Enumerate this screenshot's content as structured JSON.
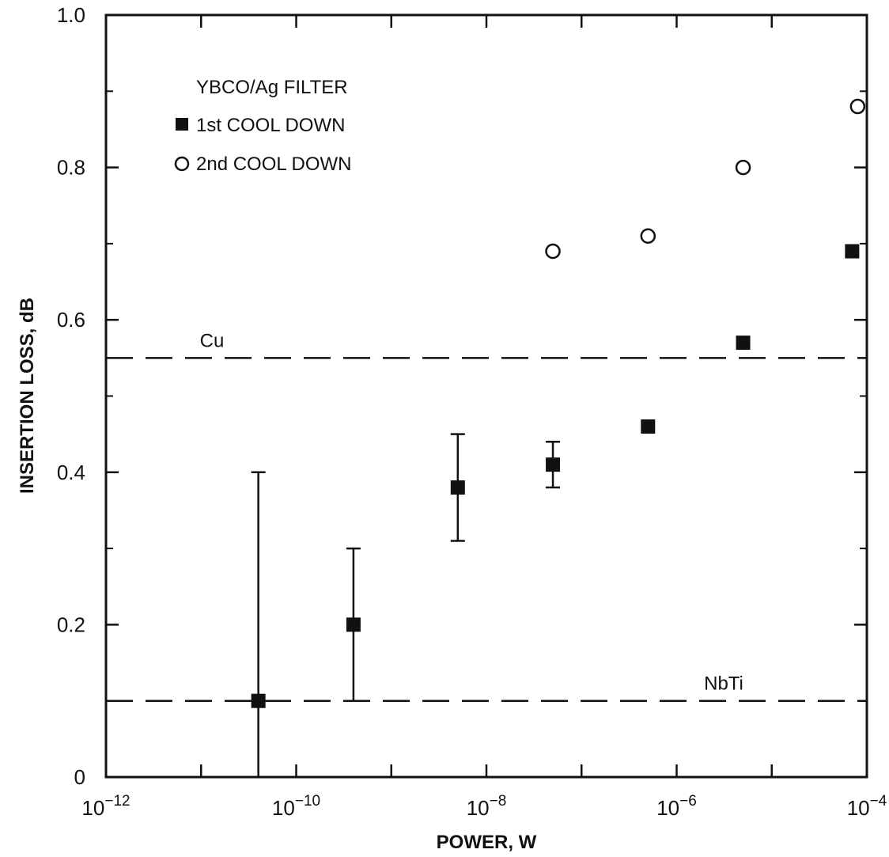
{
  "chart_data": {
    "type": "scatter",
    "xscale": "log",
    "xlim": [
      1e-12,
      0.0001
    ],
    "ylim": [
      0,
      1.0
    ],
    "xlabel": "POWER, W",
    "ylabel": "INSERTION LOSS, dB",
    "x_ticks": [
      {
        "value": 1e-12,
        "base": "10",
        "exp": "−12"
      },
      {
        "value": 1e-10,
        "base": "10",
        "exp": "−10"
      },
      {
        "value": 1e-08,
        "base": "10",
        "exp": "−8"
      },
      {
        "value": 1e-06,
        "base": "10",
        "exp": "−6"
      },
      {
        "value": 0.0001,
        "base": "10",
        "exp": "−4"
      }
    ],
    "y_ticks": [
      {
        "value": 0,
        "label": "0"
      },
      {
        "value": 0.2,
        "label": "0.2"
      },
      {
        "value": 0.4,
        "label": "0.4"
      },
      {
        "value": 0.6,
        "label": "0.6"
      },
      {
        "value": 0.8,
        "label": "0.8"
      },
      {
        "value": 1.0,
        "label": "1.0"
      }
    ],
    "legend": {
      "title": "YBCO/Ag FILTER",
      "placement": "top-left"
    },
    "series": [
      {
        "name": "1st COOL DOWN",
        "marker": "filled-square",
        "points": [
          {
            "x": 4e-11,
            "y": 0.1,
            "err_low": 0.0,
            "err_high": 0.4
          },
          {
            "x": 4e-10,
            "y": 0.2,
            "err_low": 0.1,
            "err_high": 0.3
          },
          {
            "x": 5e-09,
            "y": 0.38,
            "err_low": 0.31,
            "err_high": 0.45
          },
          {
            "x": 5e-08,
            "y": 0.41,
            "err_low": 0.38,
            "err_high": 0.44
          },
          {
            "x": 5e-07,
            "y": 0.46
          },
          {
            "x": 5e-06,
            "y": 0.57
          },
          {
            "x": 7e-05,
            "y": 0.69
          }
        ]
      },
      {
        "name": "2nd COOL DOWN",
        "marker": "open-circle",
        "points": [
          {
            "x": 5e-08,
            "y": 0.69
          },
          {
            "x": 5e-07,
            "y": 0.71
          },
          {
            "x": 5e-06,
            "y": 0.8
          },
          {
            "x": 8e-05,
            "y": 0.88
          }
        ]
      }
    ],
    "reference_lines": [
      {
        "label": "Cu",
        "y": 0.55,
        "style": "dashed"
      },
      {
        "label": "NbTi",
        "y": 0.1,
        "style": "dashed"
      }
    ],
    "grid": false
  }
}
